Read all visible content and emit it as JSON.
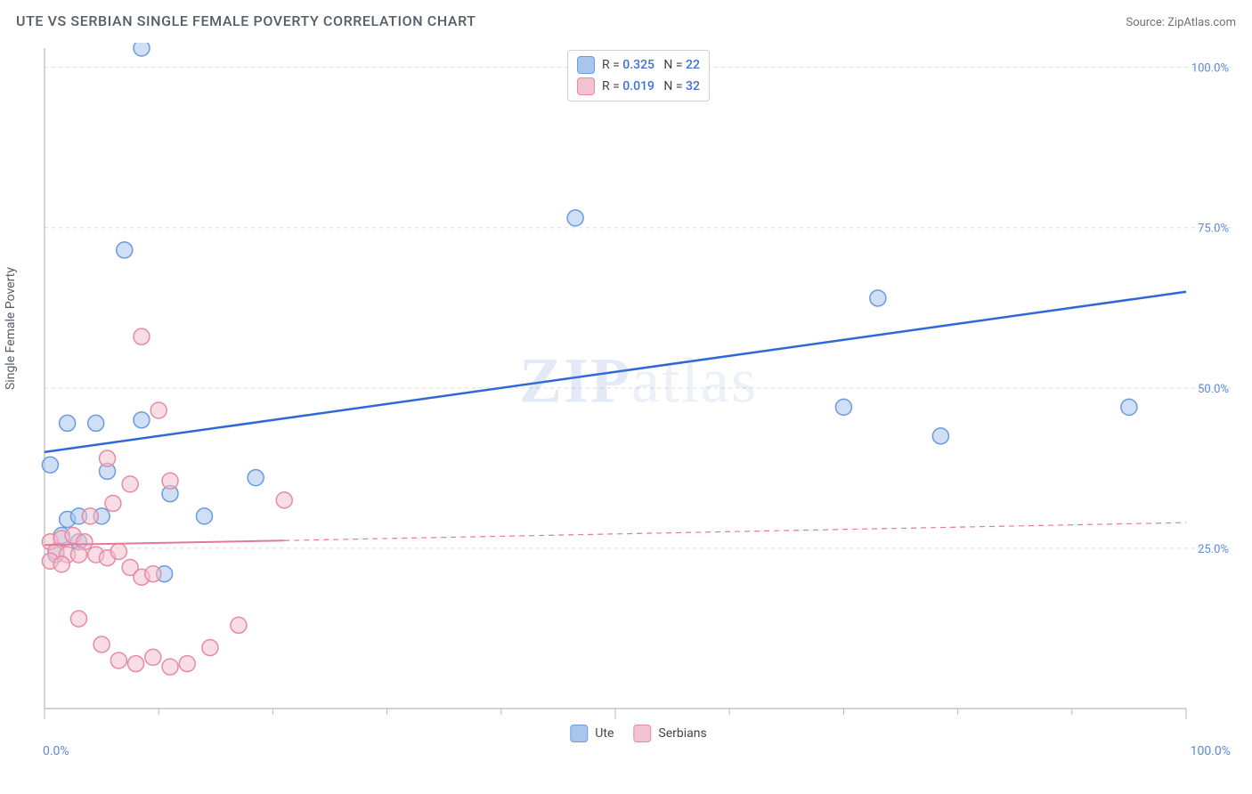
{
  "header": {
    "title": "UTE VS SERBIAN SINGLE FEMALE POVERTY CORRELATION CHART",
    "source_prefix": "Source: ",
    "source_name": "ZipAtlas.com"
  },
  "ylabel": "Single Female Poverty",
  "watermark": "ZIPatlas",
  "chart": {
    "type": "scatter",
    "xlim": [
      0,
      100
    ],
    "ylim": [
      0,
      103
    ],
    "xticks": [
      0,
      10,
      20,
      30,
      40,
      50,
      60,
      70,
      80,
      90,
      100
    ],
    "xticks_major": [
      0,
      50,
      100
    ],
    "yticks": [
      25,
      50,
      75,
      100
    ],
    "xtick_labels": {
      "0": "0.0%",
      "100": "100.0%"
    },
    "ytick_labels": {
      "25": "25.0%",
      "50": "50.0%",
      "75": "75.0%",
      "100": "100.0%"
    },
    "grid_color": "#dcdde0",
    "axis_color": "#b7b9be",
    "background_color": "#ffffff",
    "marker_radius": 9,
    "marker_opacity": 0.55,
    "marker_stroke_width": 1.5,
    "trend_line_width_solid": 2.5,
    "trend_line_width_dash": 1.2,
    "series": [
      {
        "name": "Ute",
        "color_fill": "#a8c5ee",
        "color_stroke": "#6a9ae0",
        "trend_color": "#2f68d6",
        "R": "0.325",
        "N": "22",
        "trend": {
          "x1": 0,
          "y1": 40,
          "x2": 100,
          "y2": 65
        },
        "points": [
          [
            8.5,
            103
          ],
          [
            7.0,
            71.5
          ],
          [
            46.5,
            76.5
          ],
          [
            2.0,
            44.5
          ],
          [
            4.5,
            44.5
          ],
          [
            8.5,
            45.0
          ],
          [
            0.5,
            38.0
          ],
          [
            5.5,
            37.0
          ],
          [
            18.5,
            36.0
          ],
          [
            2.0,
            29.5
          ],
          [
            3.0,
            30.0
          ],
          [
            5.0,
            30.0
          ],
          [
            14.0,
            30.0
          ],
          [
            1.5,
            27.0
          ],
          [
            3.0,
            26.0
          ],
          [
            1.0,
            24.0
          ],
          [
            10.5,
            21.0
          ],
          [
            11.0,
            33.5
          ],
          [
            70.0,
            47.0
          ],
          [
            73.0,
            64.0
          ],
          [
            78.5,
            42.5
          ],
          [
            95.0,
            47.0
          ]
        ]
      },
      {
        "name": "Serbians",
        "color_fill": "#f3c1cf",
        "color_stroke": "#e88aa3",
        "trend_color": "#e47a96",
        "R": "0.019",
        "N": "32",
        "trend_solid": {
          "x1": 0,
          "y1": 25.5,
          "x2": 21,
          "y2": 26.2
        },
        "trend_dash": {
          "x1": 21,
          "y1": 26.2,
          "x2": 100,
          "y2": 29.0
        },
        "points": [
          [
            8.5,
            58.0
          ],
          [
            10.0,
            46.5
          ],
          [
            5.5,
            39.0
          ],
          [
            7.5,
            35.0
          ],
          [
            11.0,
            35.5
          ],
          [
            21.0,
            32.5
          ],
          [
            6.0,
            32.0
          ],
          [
            4.0,
            30.0
          ],
          [
            0.5,
            26.0
          ],
          [
            1.5,
            26.5
          ],
          [
            2.5,
            27.0
          ],
          [
            3.5,
            26.0
          ],
          [
            1.0,
            24.5
          ],
          [
            2.0,
            24.0
          ],
          [
            3.0,
            24.0
          ],
          [
            4.5,
            24.0
          ],
          [
            5.5,
            23.5
          ],
          [
            6.5,
            24.5
          ],
          [
            7.5,
            22.0
          ],
          [
            8.5,
            20.5
          ],
          [
            9.5,
            21.0
          ],
          [
            0.5,
            23.0
          ],
          [
            1.5,
            22.5
          ],
          [
            3.0,
            14.0
          ],
          [
            5.0,
            10.0
          ],
          [
            17.0,
            13.0
          ],
          [
            6.5,
            7.5
          ],
          [
            8.0,
            7.0
          ],
          [
            9.5,
            8.0
          ],
          [
            11.0,
            6.5
          ],
          [
            12.5,
            7.0
          ],
          [
            14.5,
            9.5
          ]
        ]
      }
    ]
  },
  "legend_top": {
    "rows": [
      {
        "swatch_fill": "#a8c5ee",
        "swatch_stroke": "#6a9ae0",
        "r_label": "R = ",
        "r_val": "0.325",
        "n_label": "N = ",
        "n_val": "22"
      },
      {
        "swatch_fill": "#f3c1cf",
        "swatch_stroke": "#e88aa3",
        "r_label": "R = ",
        "r_val": "0.019",
        "n_label": "N = ",
        "n_val": "32"
      }
    ]
  },
  "legend_bottom": {
    "items": [
      {
        "swatch_fill": "#a8c5ee",
        "swatch_stroke": "#6a9ae0",
        "label": "Ute"
      },
      {
        "swatch_fill": "#f3c1cf",
        "swatch_stroke": "#e88aa3",
        "label": "Serbians"
      }
    ]
  }
}
